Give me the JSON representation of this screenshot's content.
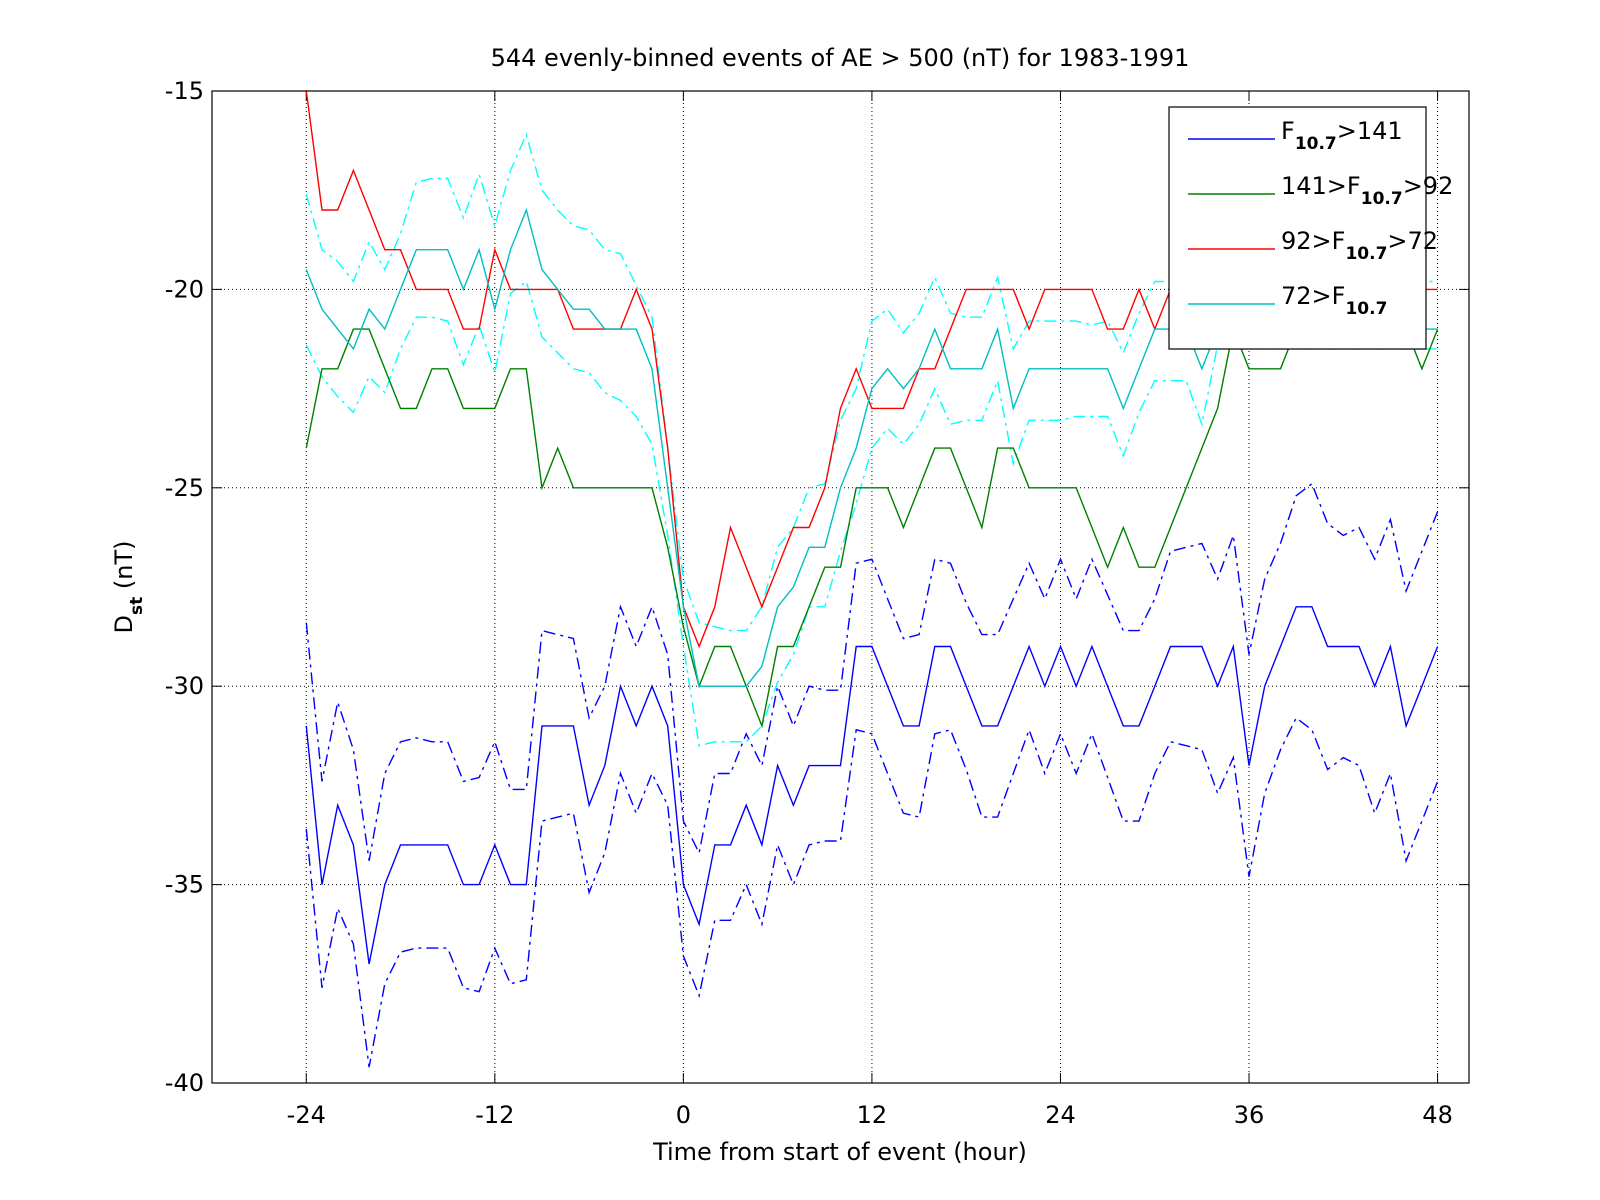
{
  "chart_data": {
    "type": "line",
    "title": "544 evenly-binned events of AE > 500 (nT) for 1983-1991",
    "xlabel": "Time from start of event (hour)",
    "ylabel": [
      "D",
      "st",
      " (nT)"
    ],
    "xlim": [
      -30,
      50
    ],
    "ylim": [
      -40,
      -15
    ],
    "xticks": [
      -24,
      -12,
      0,
      12,
      24,
      36,
      48
    ],
    "yticks": [
      -40,
      -35,
      -30,
      -25,
      -20,
      -15
    ],
    "grid": true,
    "legend": "upper right",
    "x": [
      -24,
      -23,
      -22,
      -21,
      -20,
      -19,
      -18,
      -17,
      -16,
      -15,
      -14,
      -13,
      -12,
      -11,
      -10,
      -9,
      -8,
      -7,
      -6,
      -5,
      -4,
      -3,
      -2,
      -1,
      0,
      1,
      2,
      3,
      4,
      5,
      6,
      7,
      8,
      9,
      10,
      11,
      12,
      13,
      14,
      15,
      16,
      17,
      18,
      19,
      20,
      21,
      22,
      23,
      24,
      25,
      26,
      27,
      28,
      29,
      30,
      31,
      32,
      33,
      34,
      35,
      36,
      37,
      38,
      39,
      40,
      41,
      42,
      43,
      44,
      45,
      46,
      47,
      48
    ],
    "series": [
      {
        "name": [
          "F",
          "10.7",
          ">141"
        ],
        "color": "#0000ff",
        "band_color": "#0000ff",
        "values": [
          -31,
          -35,
          -33,
          -34,
          -37,
          -35,
          -34,
          -34,
          -34,
          -34,
          -35,
          -35,
          -34,
          -35,
          -35,
          -31,
          -31,
          -31,
          -33,
          -32,
          -30,
          -31,
          -30,
          -31,
          -35,
          -36,
          -34,
          -34,
          -33,
          -34,
          -32,
          -33,
          -32,
          -32,
          -32,
          -29,
          -29,
          -30,
          -31,
          -31,
          -29,
          -29,
          -30,
          -31,
          -31,
          -30,
          -29,
          -30,
          -29,
          -30,
          -29,
          -30,
          -31,
          -31,
          -30,
          -29,
          -29,
          -29,
          -30,
          -29,
          -32,
          -30,
          -29,
          -28,
          -28,
          -29,
          -29,
          -29,
          -30,
          -29,
          -31,
          -30,
          -29
        ],
        "upper": [
          -28.4,
          -32.4,
          -30.4,
          -31.6,
          -34.4,
          -32.2,
          -31.4,
          -31.3,
          -31.4,
          -31.4,
          -32.4,
          -32.3,
          -31.4,
          -32.6,
          -32.6,
          -28.6,
          -28.7,
          -28.8,
          -30.8,
          -30.0,
          -28.0,
          -29.0,
          -28.0,
          -29.2,
          -33.4,
          -34.2,
          -32.2,
          -32.2,
          -31.2,
          -32.0,
          -30.0,
          -31.0,
          -30.0,
          -30.1,
          -30.1,
          -26.9,
          -26.8,
          -27.8,
          -28.8,
          -28.7,
          -26.8,
          -26.9,
          -27.9,
          -28.7,
          -28.7,
          -27.8,
          -26.9,
          -27.8,
          -26.8,
          -27.8,
          -26.8,
          -27.7,
          -28.6,
          -28.6,
          -27.8,
          -26.6,
          -26.5,
          -26.4,
          -27.3,
          -26.2,
          -29.2,
          -27.3,
          -26.4,
          -25.2,
          -24.9,
          -25.9,
          -26.2,
          -26.0,
          -26.8,
          -25.8,
          -27.6,
          -26.6,
          -25.6
        ],
        "lower": [
          -33.6,
          -37.6,
          -35.6,
          -36.5,
          -39.6,
          -37.5,
          -36.7,
          -36.6,
          -36.6,
          -36.6,
          -37.6,
          -37.7,
          -36.6,
          -37.5,
          -37.4,
          -33.4,
          -33.3,
          -33.2,
          -35.2,
          -34.2,
          -32.2,
          -33.2,
          -32.2,
          -33.0,
          -36.8,
          -37.8,
          -35.9,
          -35.9,
          -35.0,
          -36.0,
          -34.0,
          -35.0,
          -34.0,
          -33.9,
          -33.9,
          -31.1,
          -31.2,
          -32.2,
          -33.2,
          -33.3,
          -31.2,
          -31.1,
          -32.1,
          -33.3,
          -33.3,
          -32.2,
          -31.1,
          -32.2,
          -31.2,
          -32.2,
          -31.2,
          -32.3,
          -33.4,
          -33.4,
          -32.2,
          -31.4,
          -31.5,
          -31.6,
          -32.7,
          -31.8,
          -34.8,
          -32.7,
          -31.6,
          -30.8,
          -31.1,
          -32.1,
          -31.8,
          -32.0,
          -33.2,
          -32.2,
          -34.4,
          -33.4,
          -32.4
        ]
      },
      {
        "name": [
          "141>F",
          "10.7",
          ">92"
        ],
        "color": "#008000",
        "values": [
          -24,
          -22,
          -22,
          -21,
          -21,
          -22,
          -23,
          -23,
          -22,
          -22,
          -23,
          -23,
          -23,
          -22,
          -22,
          -25,
          -24,
          -25,
          -25,
          -25,
          -25,
          -25,
          -25,
          -26.5,
          -28.5,
          -30,
          -29,
          -29,
          -30,
          -31,
          -29,
          -29,
          -28,
          -27,
          -27,
          -25,
          -25,
          -25,
          -26,
          -25,
          -24,
          -24,
          -25,
          -26,
          -24,
          -24,
          -25,
          -25,
          -25,
          -25,
          -26,
          -27,
          -26,
          -27,
          -27,
          -26,
          -25,
          -24,
          -23,
          -21,
          -22,
          -22,
          -22,
          -21,
          -21,
          -21,
          -21,
          -20,
          -20,
          -21,
          -21,
          -22,
          -21
        ]
      },
      {
        "name": [
          "92>F",
          "10.7",
          ">72"
        ],
        "color": "#ff0000",
        "values": [
          -15,
          -18,
          -18,
          -17,
          -18,
          -19,
          -19,
          -20,
          -20,
          -20,
          -21,
          -21,
          -19,
          -20,
          -20,
          -20,
          -20,
          -21,
          -21,
          -21,
          -21,
          -20,
          -21,
          -24,
          -28,
          -29,
          -28,
          -26,
          -27,
          -28,
          -27,
          -26,
          -26,
          -25,
          -23,
          -22,
          -23,
          -23,
          -23,
          -22,
          -22,
          -21,
          -20,
          -20,
          -20,
          -20,
          -21,
          -20,
          -20,
          -20,
          -20,
          -21,
          -21,
          -20,
          -21,
          -20,
          -20,
          -20,
          -20,
          -20,
          -20,
          -20,
          -20,
          -20,
          -20,
          -20,
          -20,
          -20,
          -20,
          -20,
          -20,
          -20,
          -20
        ]
      },
      {
        "name": [
          "72>F",
          "10.7"
        ],
        "color": "#00bfbf",
        "band_color": "#00ffff",
        "values": [
          -19.5,
          -20.5,
          -21,
          -21.5,
          -20.5,
          -21,
          -20,
          -19,
          -19,
          -19,
          -20,
          -19,
          -20.5,
          -19,
          -18,
          -19.5,
          -20,
          -20.5,
          -20.5,
          -21,
          -21,
          -21,
          -22,
          -25,
          -28,
          -30,
          -30,
          -30,
          -30,
          -29.5,
          -28,
          -27.5,
          -26.5,
          -26.5,
          -25,
          -24,
          -22.5,
          -22,
          -22.5,
          -22,
          -21,
          -22,
          -22,
          -22,
          -21,
          -23,
          -22,
          -22,
          -22,
          -22,
          -22,
          -22,
          -23,
          -22,
          -21,
          -21,
          -21,
          -22,
          -21,
          -21,
          -21,
          -21,
          -21,
          -21,
          -21,
          -21,
          -21,
          -21,
          -21,
          -21,
          -21,
          -21,
          -21
        ],
        "upper": [
          -17.6,
          -19.0,
          -19.3,
          -19.8,
          -18.8,
          -19.5,
          -18.6,
          -17.3,
          -17.2,
          -17.2,
          -18.2,
          -17.1,
          -18.4,
          -17.0,
          -16.1,
          -17.5,
          -18.0,
          -18.4,
          -18.5,
          -19.0,
          -19.1,
          -19.9,
          -20.7,
          -24.0,
          -27.3,
          -28.4,
          -28.5,
          -28.6,
          -28.6,
          -28.0,
          -26.5,
          -26.0,
          -25.0,
          -24.9,
          -23.3,
          -22.5,
          -20.8,
          -20.5,
          -21.1,
          -20.6,
          -19.7,
          -20.6,
          -20.7,
          -20.7,
          -19.7,
          -21.5,
          -20.8,
          -20.8,
          -20.8,
          -20.8,
          -20.9,
          -20.8,
          -21.6,
          -20.6,
          -19.8,
          -19.8,
          -19.8,
          -20.6,
          -19.8,
          -19.8,
          -19.8,
          -19.8,
          -19.8,
          -19.8,
          -19.8,
          -19.8,
          -19.8,
          -19.8,
          -19.8,
          -19.8,
          -19.8,
          -19.8,
          -19.8
        ],
        "lower": [
          -21.4,
          -22.2,
          -22.7,
          -23.1,
          -22.2,
          -22.6,
          -21.5,
          -20.7,
          -20.7,
          -20.8,
          -21.9,
          -20.9,
          -22.1,
          -20.1,
          -19.8,
          -21.2,
          -21.6,
          -22.0,
          -22.1,
          -22.6,
          -22.8,
          -23.2,
          -23.9,
          -26.2,
          -29.0,
          -31.5,
          -31.4,
          -31.4,
          -31.4,
          -31.0,
          -29.9,
          -29.2,
          -28.0,
          -28.0,
          -26.6,
          -25.4,
          -24.0,
          -23.5,
          -23.9,
          -23.4,
          -22.5,
          -23.4,
          -23.3,
          -23.3,
          -22.3,
          -24.4,
          -23.3,
          -23.3,
          -23.3,
          -23.2,
          -23.2,
          -23.2,
          -24.2,
          -23.1,
          -22.3,
          -22.3,
          -22.3,
          -23.4,
          -21.4,
          -21.5,
          -21.5,
          -21.5,
          -21.5,
          -21.5,
          -21.5,
          -21.5,
          -21.5,
          -21.5,
          -21.5,
          -21.5,
          -21.5,
          -21.5,
          -21.5
        ]
      }
    ]
  }
}
